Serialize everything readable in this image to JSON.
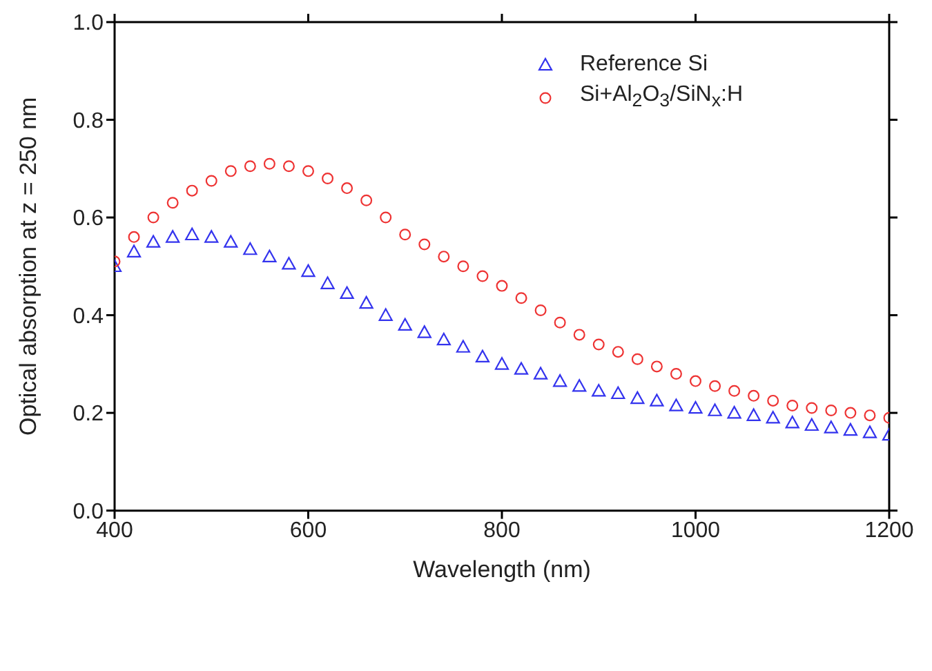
{
  "chart_data": {
    "type": "scatter",
    "xlabel": "Wavelength (nm)",
    "ylabel": "Optical absorption at z = 250 nm",
    "x": [
      400,
      420,
      440,
      460,
      480,
      500,
      520,
      540,
      560,
      580,
      600,
      620,
      640,
      660,
      680,
      700,
      720,
      740,
      760,
      780,
      800,
      820,
      840,
      860,
      880,
      900,
      920,
      940,
      960,
      980,
      1000,
      1020,
      1040,
      1060,
      1080,
      1100,
      1120,
      1140,
      1160,
      1180,
      1200
    ],
    "series": [
      {
        "name": "Reference Si",
        "color": "#3333ee",
        "marker": "triangle",
        "values": [
          0.5,
          0.53,
          0.55,
          0.56,
          0.565,
          0.56,
          0.55,
          0.535,
          0.52,
          0.505,
          0.49,
          0.465,
          0.445,
          0.425,
          0.4,
          0.38,
          0.365,
          0.35,
          0.335,
          0.315,
          0.3,
          0.29,
          0.28,
          0.265,
          0.255,
          0.245,
          0.24,
          0.23,
          0.225,
          0.215,
          0.21,
          0.205,
          0.2,
          0.195,
          0.19,
          0.18,
          0.175,
          0.17,
          0.165,
          0.16,
          0.155
        ]
      },
      {
        "name": "Si+Al$_{2}$O$_{3}$/SiN$_{x}$:H",
        "color": "#ee3333",
        "marker": "circle",
        "values": [
          0.51,
          0.56,
          0.6,
          0.63,
          0.655,
          0.675,
          0.695,
          0.705,
          0.71,
          0.705,
          0.695,
          0.68,
          0.66,
          0.635,
          0.6,
          0.565,
          0.545,
          0.52,
          0.5,
          0.48,
          0.46,
          0.435,
          0.41,
          0.385,
          0.36,
          0.34,
          0.325,
          0.31,
          0.295,
          0.28,
          0.265,
          0.255,
          0.245,
          0.235,
          0.225,
          0.215,
          0.21,
          0.205,
          0.2,
          0.195,
          0.19
        ]
      }
    ],
    "xlim": [
      400,
      1200
    ],
    "xticks": [
      400,
      600,
      800,
      1000,
      1200
    ],
    "ylim": [
      0,
      1
    ],
    "yticks": [
      {
        "value": 0,
        "label": "0.0"
      },
      {
        "value": 0.2,
        "label": "0.2"
      },
      {
        "value": 0.4,
        "label": "0.4"
      },
      {
        "value": 0.6,
        "label": "0.6"
      },
      {
        "value": 0.8,
        "label": "0.8"
      },
      {
        "value": 1,
        "label": "1.0"
      }
    ],
    "legend": "top right"
  }
}
